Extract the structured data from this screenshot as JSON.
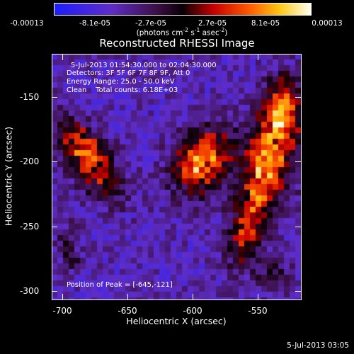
{
  "colorbar": {
    "ticks": [
      "-0.00013",
      "-8.1e-05",
      "-2.7e-05",
      "2.7e-05",
      "8.1e-05",
      "0.00013"
    ],
    "unit_prefix": "(photons cm",
    "unit_exp1": "-2",
    "unit_mid1": " s",
    "unit_exp2": "-1",
    "unit_mid2": " asec",
    "unit_exp3": "-2",
    "unit_suffix": ")"
  },
  "title": "Reconstructed RHESSI Image",
  "axes": {
    "xlabel": "Heliocentric X (arcsec)",
    "ylabel": "Heliocentric Y (arcsec)",
    "x_ticks": [
      "-700",
      "-650",
      "-600",
      "-550"
    ],
    "y_ticks": [
      "-150",
      "-200",
      "-250",
      "-300"
    ],
    "x_range": [
      -715,
      -523
    ],
    "y_range": [
      -307,
      -118
    ]
  },
  "annotations": {
    "time_range": "5-Jul-2013 01:54:30.000 to 02:04:30.000",
    "detectors": "Detectors: 3F 5F 6F 7F 8F 9F, Att 0",
    "energy": "Energy Range: 25.0 - 50.0 keV",
    "clean": "Clean    Total counts: 6.18E+03",
    "peak": "Position of Peak = [-645,-121]"
  },
  "date_stamp": "5-Jul-2013 03:05",
  "colors": {
    "background": "#000000",
    "text": "#ffffff"
  }
}
